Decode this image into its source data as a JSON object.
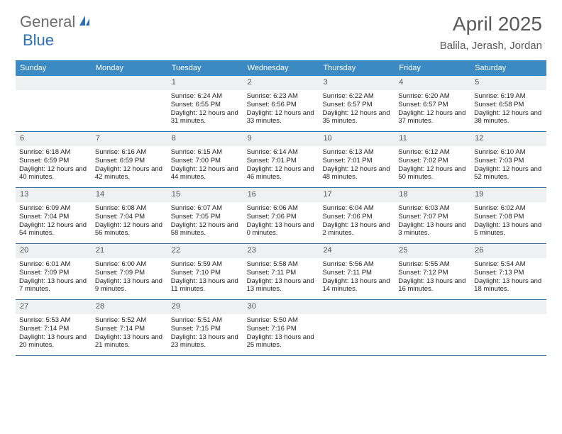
{
  "logo": {
    "part1": "General",
    "part2": "Blue"
  },
  "title": "April 2025",
  "location": "Balila, Jerash, Jordan",
  "colors": {
    "header_bg": "#3b8ac4",
    "header_text": "#ffffff",
    "daynum_bg": "#eef0f2",
    "border": "#3b6fa0",
    "text": "#222222",
    "title_text": "#5a5a5a",
    "logo_gray": "#6b6b6b",
    "logo_blue": "#2a6fb5"
  },
  "dayNames": [
    "Sunday",
    "Monday",
    "Tuesday",
    "Wednesday",
    "Thursday",
    "Friday",
    "Saturday"
  ],
  "weeks": [
    [
      {
        "n": "",
        "lines": []
      },
      {
        "n": "",
        "lines": []
      },
      {
        "n": "1",
        "lines": [
          "Sunrise: 6:24 AM",
          "Sunset: 6:55 PM",
          "Daylight: 12 hours and 31 minutes."
        ]
      },
      {
        "n": "2",
        "lines": [
          "Sunrise: 6:23 AM",
          "Sunset: 6:56 PM",
          "Daylight: 12 hours and 33 minutes."
        ]
      },
      {
        "n": "3",
        "lines": [
          "Sunrise: 6:22 AM",
          "Sunset: 6:57 PM",
          "Daylight: 12 hours and 35 minutes."
        ]
      },
      {
        "n": "4",
        "lines": [
          "Sunrise: 6:20 AM",
          "Sunset: 6:57 PM",
          "Daylight: 12 hours and 37 minutes."
        ]
      },
      {
        "n": "5",
        "lines": [
          "Sunrise: 6:19 AM",
          "Sunset: 6:58 PM",
          "Daylight: 12 hours and 38 minutes."
        ]
      }
    ],
    [
      {
        "n": "6",
        "lines": [
          "Sunrise: 6:18 AM",
          "Sunset: 6:59 PM",
          "Daylight: 12 hours and 40 minutes."
        ]
      },
      {
        "n": "7",
        "lines": [
          "Sunrise: 6:16 AM",
          "Sunset: 6:59 PM",
          "Daylight: 12 hours and 42 minutes."
        ]
      },
      {
        "n": "8",
        "lines": [
          "Sunrise: 6:15 AM",
          "Sunset: 7:00 PM",
          "Daylight: 12 hours and 44 minutes."
        ]
      },
      {
        "n": "9",
        "lines": [
          "Sunrise: 6:14 AM",
          "Sunset: 7:01 PM",
          "Daylight: 12 hours and 46 minutes."
        ]
      },
      {
        "n": "10",
        "lines": [
          "Sunrise: 6:13 AM",
          "Sunset: 7:01 PM",
          "Daylight: 12 hours and 48 minutes."
        ]
      },
      {
        "n": "11",
        "lines": [
          "Sunrise: 6:12 AM",
          "Sunset: 7:02 PM",
          "Daylight: 12 hours and 50 minutes."
        ]
      },
      {
        "n": "12",
        "lines": [
          "Sunrise: 6:10 AM",
          "Sunset: 7:03 PM",
          "Daylight: 12 hours and 52 minutes."
        ]
      }
    ],
    [
      {
        "n": "13",
        "lines": [
          "Sunrise: 6:09 AM",
          "Sunset: 7:04 PM",
          "Daylight: 12 hours and 54 minutes."
        ]
      },
      {
        "n": "14",
        "lines": [
          "Sunrise: 6:08 AM",
          "Sunset: 7:04 PM",
          "Daylight: 12 hours and 56 minutes."
        ]
      },
      {
        "n": "15",
        "lines": [
          "Sunrise: 6:07 AM",
          "Sunset: 7:05 PM",
          "Daylight: 12 hours and 58 minutes."
        ]
      },
      {
        "n": "16",
        "lines": [
          "Sunrise: 6:06 AM",
          "Sunset: 7:06 PM",
          "Daylight: 13 hours and 0 minutes."
        ]
      },
      {
        "n": "17",
        "lines": [
          "Sunrise: 6:04 AM",
          "Sunset: 7:06 PM",
          "Daylight: 13 hours and 2 minutes."
        ]
      },
      {
        "n": "18",
        "lines": [
          "Sunrise: 6:03 AM",
          "Sunset: 7:07 PM",
          "Daylight: 13 hours and 3 minutes."
        ]
      },
      {
        "n": "19",
        "lines": [
          "Sunrise: 6:02 AM",
          "Sunset: 7:08 PM",
          "Daylight: 13 hours and 5 minutes."
        ]
      }
    ],
    [
      {
        "n": "20",
        "lines": [
          "Sunrise: 6:01 AM",
          "Sunset: 7:09 PM",
          "Daylight: 13 hours and 7 minutes."
        ]
      },
      {
        "n": "21",
        "lines": [
          "Sunrise: 6:00 AM",
          "Sunset: 7:09 PM",
          "Daylight: 13 hours and 9 minutes."
        ]
      },
      {
        "n": "22",
        "lines": [
          "Sunrise: 5:59 AM",
          "Sunset: 7:10 PM",
          "Daylight: 13 hours and 11 minutes."
        ]
      },
      {
        "n": "23",
        "lines": [
          "Sunrise: 5:58 AM",
          "Sunset: 7:11 PM",
          "Daylight: 13 hours and 13 minutes."
        ]
      },
      {
        "n": "24",
        "lines": [
          "Sunrise: 5:56 AM",
          "Sunset: 7:11 PM",
          "Daylight: 13 hours and 14 minutes."
        ]
      },
      {
        "n": "25",
        "lines": [
          "Sunrise: 5:55 AM",
          "Sunset: 7:12 PM",
          "Daylight: 13 hours and 16 minutes."
        ]
      },
      {
        "n": "26",
        "lines": [
          "Sunrise: 5:54 AM",
          "Sunset: 7:13 PM",
          "Daylight: 13 hours and 18 minutes."
        ]
      }
    ],
    [
      {
        "n": "27",
        "lines": [
          "Sunrise: 5:53 AM",
          "Sunset: 7:14 PM",
          "Daylight: 13 hours and 20 minutes."
        ]
      },
      {
        "n": "28",
        "lines": [
          "Sunrise: 5:52 AM",
          "Sunset: 7:14 PM",
          "Daylight: 13 hours and 21 minutes."
        ]
      },
      {
        "n": "29",
        "lines": [
          "Sunrise: 5:51 AM",
          "Sunset: 7:15 PM",
          "Daylight: 13 hours and 23 minutes."
        ]
      },
      {
        "n": "30",
        "lines": [
          "Sunrise: 5:50 AM",
          "Sunset: 7:16 PM",
          "Daylight: 13 hours and 25 minutes."
        ]
      },
      {
        "n": "",
        "lines": []
      },
      {
        "n": "",
        "lines": []
      },
      {
        "n": "",
        "lines": []
      }
    ]
  ]
}
